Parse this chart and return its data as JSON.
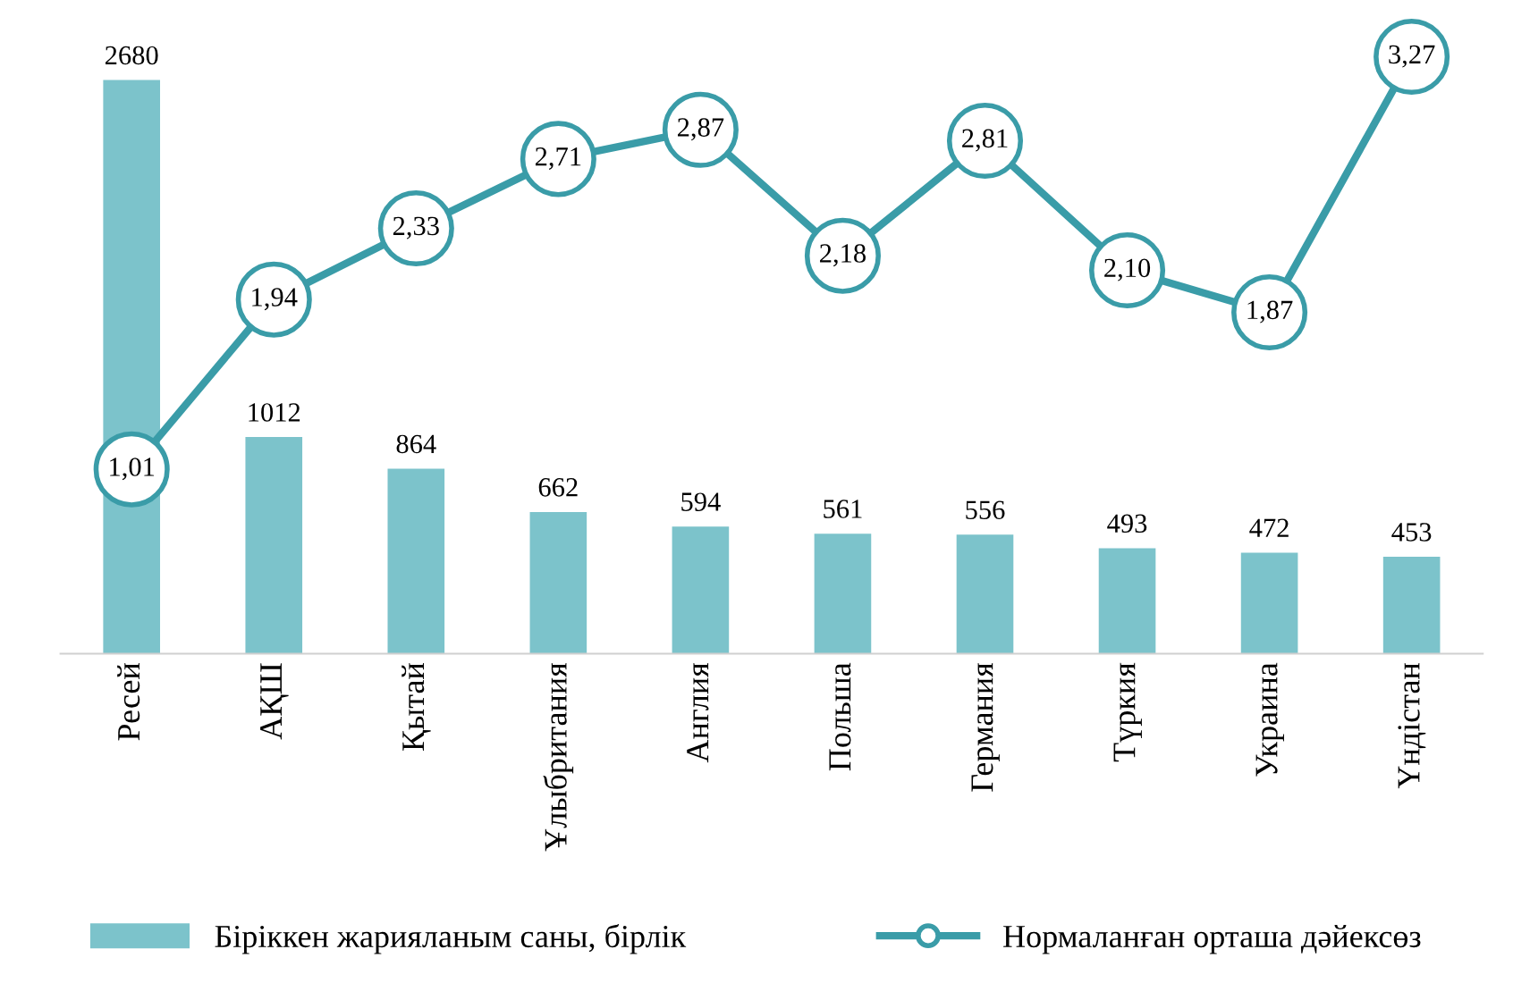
{
  "chart_data": {
    "type": "bar",
    "categories": [
      "Ресей",
      "АҚШ",
      "Қытай",
      "Ұлыбритания",
      "Англия",
      "Польша",
      "Германия",
      "Түркия",
      "Украина",
      "Үндістан"
    ],
    "series": [
      {
        "name": "Біріккен жарияланым саны, бірлік",
        "color": "#7cc3cb",
        "values": [
          2680,
          1012,
          864,
          662,
          594,
          561,
          556,
          493,
          472,
          453
        ],
        "value_labels": [
          "2680",
          "1012",
          "864",
          "662",
          "594",
          "561",
          "556",
          "493",
          "472",
          "453"
        ]
      },
      {
        "name": "Нормаланған орташа дәйексөз",
        "type": "line",
        "axis": "y2",
        "color": "#3a9ca8",
        "marker": "circle",
        "values": [
          1.01,
          1.94,
          2.33,
          2.71,
          2.87,
          2.18,
          2.81,
          2.1,
          1.87,
          3.27
        ],
        "value_labels": [
          "1,01",
          "1,94",
          "2,33",
          "2,71",
          "2,87",
          "2,18",
          "2,81",
          "2,10",
          "1,87",
          "3,27"
        ]
      }
    ],
    "tick_labels": "x",
    "legend": "bottom",
    "grid": false
  }
}
